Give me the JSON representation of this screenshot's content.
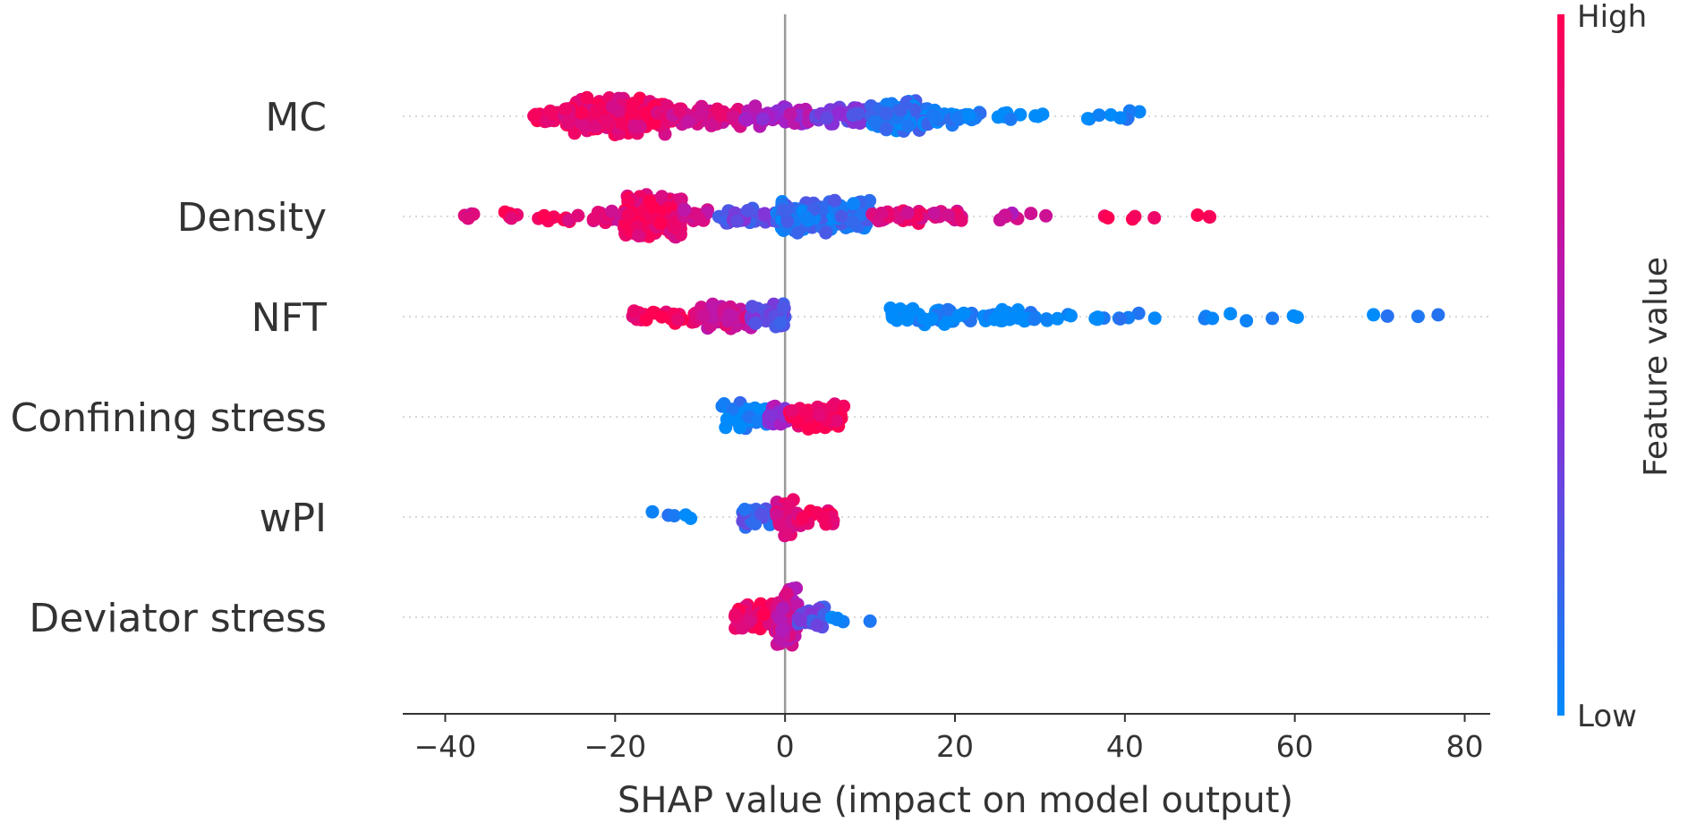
{
  "chart_data": {
    "type": "scatter",
    "subtype": "shap-beeswarm",
    "xlabel": "SHAP value (impact on model output)",
    "xlim": [
      -45,
      83
    ],
    "xticks": [
      -40,
      -20,
      0,
      20,
      40,
      60,
      80
    ],
    "xtick_labels": [
      "−40",
      "−20",
      "0",
      "20",
      "40",
      "60",
      "80"
    ],
    "zero_line": 0,
    "colorbar": {
      "title": "Feature value",
      "high_label": "High",
      "low_label": "Low",
      "high_color": "#ff0052",
      "mid_color": "#a020d0",
      "low_color": "#008bfb"
    },
    "features": [
      {
        "name": "MC",
        "points": [
          {
            "min": -30,
            "max": -26,
            "n": 14,
            "value": 0.95
          },
          {
            "min": -26,
            "max": -14,
            "n": 190,
            "value": 0.9
          },
          {
            "min": -14,
            "max": -5,
            "n": 70,
            "value": 0.8
          },
          {
            "min": -5,
            "max": 3,
            "n": 55,
            "value": 0.55
          },
          {
            "min": 3,
            "max": 10,
            "n": 45,
            "value": 0.35
          },
          {
            "min": 10,
            "max": 17,
            "n": 95,
            "value": 0.1
          },
          {
            "min": 17,
            "max": 23,
            "n": 30,
            "value": 0.05
          },
          {
            "min": 24,
            "max": 31,
            "n": 9,
            "value": 0.0
          },
          {
            "min": 35,
            "max": 42,
            "n": 9,
            "value": 0.0
          }
        ]
      },
      {
        "name": "Density",
        "points": [
          {
            "min": -38.5,
            "max": -35.5,
            "n": 7,
            "value": 0.72
          },
          {
            "min": -33,
            "max": -23,
            "n": 16,
            "value": 0.92
          },
          {
            "min": -23,
            "max": -19,
            "n": 10,
            "value": 0.78
          },
          {
            "min": -19,
            "max": -12,
            "n": 150,
            "value": 0.9
          },
          {
            "min": -12,
            "max": -9,
            "n": 14,
            "value": 0.78
          },
          {
            "min": -8,
            "max": -1,
            "n": 35,
            "value": 0.3
          },
          {
            "min": -1,
            "max": 10,
            "n": 150,
            "value": 0.12
          },
          {
            "min": 10,
            "max": 21,
            "n": 40,
            "value": 0.82
          },
          {
            "min": 25,
            "max": 31,
            "n": 8,
            "value": 0.7
          },
          {
            "min": 33,
            "max": 54,
            "n": 8,
            "value": 0.98
          }
        ]
      },
      {
        "name": "NFT",
        "points": [
          {
            "min": -18,
            "max": -10,
            "n": 30,
            "value": 0.95
          },
          {
            "min": -10,
            "max": -4,
            "n": 60,
            "value": 0.75
          },
          {
            "min": -4,
            "max": 0,
            "n": 45,
            "value": 0.3
          },
          {
            "min": 12,
            "max": 30,
            "n": 80,
            "value": 0.0
          },
          {
            "min": 30,
            "max": 45,
            "n": 14,
            "value": 0.0
          },
          {
            "min": 48,
            "max": 62,
            "n": 8,
            "value": 0.0
          },
          {
            "min": 69,
            "max": 78,
            "n": 4,
            "value": 0.0
          }
        ]
      },
      {
        "name": "Confining stress",
        "points": [
          {
            "min": -7.5,
            "max": -2,
            "n": 55,
            "value": 0.05
          },
          {
            "min": -2,
            "max": 0.5,
            "n": 30,
            "value": 0.5
          },
          {
            "min": 0.5,
            "max": 7,
            "n": 65,
            "value": 0.97
          }
        ]
      },
      {
        "name": "wPI",
        "points": [
          {
            "min": -16,
            "max": -11,
            "n": 5,
            "value": 0.0
          },
          {
            "min": -5,
            "max": -1,
            "n": 30,
            "value": 0.2
          },
          {
            "min": -1,
            "max": 1,
            "n": 40,
            "value": 0.85
          },
          {
            "min": 1,
            "max": 6,
            "n": 25,
            "value": 0.9
          }
        ]
      },
      {
        "name": "Deviator stress",
        "points": [
          {
            "min": -6,
            "max": -1,
            "n": 55,
            "value": 0.92
          },
          {
            "min": -1,
            "max": 1.5,
            "n": 70,
            "value": 0.7
          },
          {
            "min": 1.5,
            "max": 5,
            "n": 25,
            "value": 0.3
          },
          {
            "min": 5,
            "max": 7,
            "n": 5,
            "value": 0.0
          },
          {
            "min": 10,
            "max": 11,
            "n": 1,
            "value": 0.0
          }
        ]
      }
    ]
  }
}
